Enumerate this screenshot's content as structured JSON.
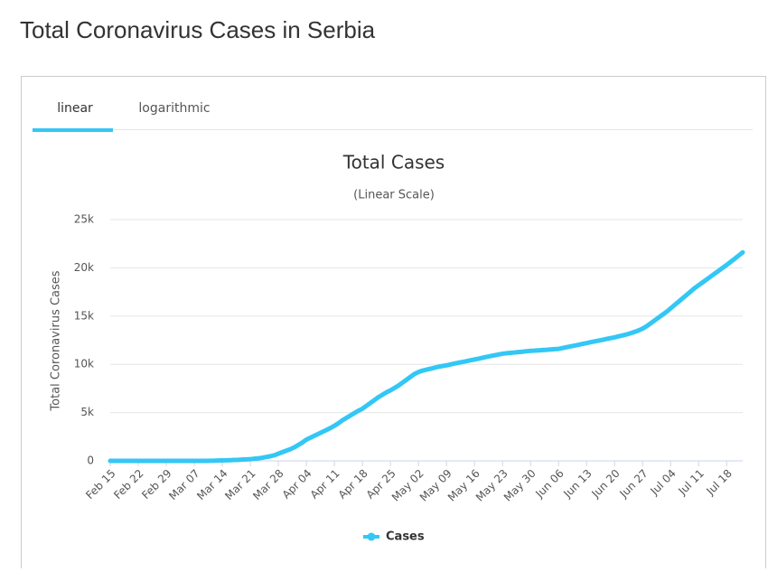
{
  "page_title": "Total Coronavirus Cases in Serbia",
  "tabs": [
    "linear",
    "logarithmic"
  ],
  "chart_data": {
    "type": "line",
    "title": "Total Cases",
    "subtitle": "(Linear Scale)",
    "y_label": "Total Coronavirus Cases",
    "categories": [
      "Feb 15",
      null,
      null,
      null,
      null,
      null,
      null,
      "Feb 22",
      null,
      null,
      null,
      null,
      null,
      null,
      "Feb 29",
      null,
      null,
      null,
      null,
      null,
      null,
      "Mar 07",
      null,
      null,
      null,
      null,
      null,
      null,
      "Mar 14",
      null,
      null,
      null,
      null,
      null,
      null,
      "Mar 21",
      null,
      null,
      null,
      null,
      null,
      null,
      "Mar 28",
      null,
      null,
      null,
      null,
      null,
      null,
      "Apr 04",
      null,
      null,
      null,
      null,
      null,
      null,
      "Apr 11",
      null,
      null,
      null,
      null,
      null,
      null,
      "Apr 18",
      null,
      null,
      null,
      null,
      null,
      null,
      "Apr 25",
      null,
      null,
      null,
      null,
      null,
      null,
      "May 02",
      null,
      null,
      null,
      null,
      null,
      null,
      "May 09",
      null,
      null,
      null,
      null,
      null,
      null,
      "May 16",
      null,
      null,
      null,
      null,
      null,
      null,
      "May 23",
      null,
      null,
      null,
      null,
      null,
      null,
      "May 30",
      null,
      null,
      null,
      null,
      null,
      null,
      "Jun 06",
      null,
      null,
      null,
      null,
      null,
      null,
      "Jun 13",
      null,
      null,
      null,
      null,
      null,
      null,
      "Jun 20",
      null,
      null,
      null,
      null,
      null,
      null,
      "Jun 27",
      null,
      null,
      null,
      null,
      null,
      null,
      "Jul 04",
      null,
      null,
      null,
      null,
      null,
      null,
      "Jul 11",
      null,
      null,
      null,
      null,
      null,
      null,
      "Jul 18",
      null,
      null,
      null,
      null
    ],
    "series": [
      {
        "name": "Cases",
        "color": "#33c7f5",
        "values": [
          0,
          0,
          0,
          0,
          0,
          0,
          0,
          0,
          0,
          0,
          0,
          0,
          0,
          0,
          0,
          0,
          0,
          0,
          0,
          0,
          1,
          1,
          1,
          1,
          5,
          12,
          19,
          35,
          48,
          57,
          72,
          89,
          103,
          135,
          150,
          171,
          222,
          260,
          320,
          400,
          480,
          580,
          741,
          900,
          1060,
          1200,
          1400,
          1650,
          1900,
          2200,
          2400,
          2600,
          2800,
          3000,
          3200,
          3400,
          3630,
          3900,
          4200,
          4450,
          4700,
          4950,
          5200,
          5400,
          5700,
          6000,
          6300,
          6600,
          6850,
          7100,
          7300,
          7550,
          7800,
          8100,
          8400,
          8700,
          9000,
          9200,
          9350,
          9450,
          9550,
          9650,
          9750,
          9830,
          9900,
          9990,
          10080,
          10170,
          10250,
          10330,
          10420,
          10500,
          10590,
          10680,
          10770,
          10860,
          10940,
          11020,
          11100,
          11150,
          11190,
          11230,
          11270,
          11310,
          11360,
          11400,
          11420,
          11450,
          11480,
          11510,
          11540,
          11570,
          11600,
          11690,
          11780,
          11860,
          11940,
          12030,
          12120,
          12200,
          12290,
          12380,
          12460,
          12540,
          12630,
          12720,
          12800,
          12900,
          13000,
          13100,
          13230,
          13360,
          13520,
          13700,
          13950,
          14250,
          14550,
          14850,
          15150,
          15450,
          15800,
          16150,
          16500,
          16850,
          17200,
          17550,
          17900,
          18200,
          18500,
          18800,
          19100,
          19400,
          19700,
          20000,
          20300,
          20620,
          20940,
          21270,
          21600
        ]
      }
    ],
    "ylim": [
      0,
      25000
    ],
    "yticks": [
      0,
      {
        "value": 5000,
        "label": "5k"
      },
      {
        "value": 10000,
        "label": "10k"
      },
      {
        "value": 15000,
        "label": "15k"
      },
      {
        "value": 20000,
        "label": "20k"
      },
      {
        "value": 25000,
        "label": "25k"
      }
    ],
    "grid": true,
    "legend": "bottom"
  }
}
